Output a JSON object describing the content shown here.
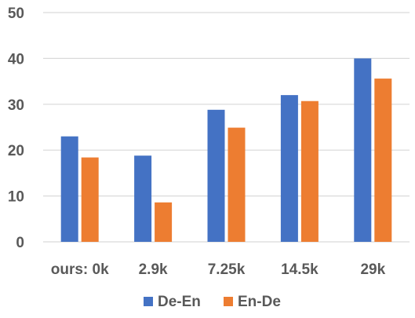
{
  "chart_data": {
    "type": "bar",
    "title": "",
    "xlabel": "",
    "ylabel": "",
    "categories": [
      "ours: 0k",
      "2.9k",
      "7.25k",
      "14.5k",
      "29k"
    ],
    "series": [
      {
        "name": "De-En",
        "color": "#4472C4",
        "values": [
          23.0,
          18.8,
          28.8,
          32.0,
          40.0
        ]
      },
      {
        "name": "En-De",
        "color": "#ED7D31",
        "values": [
          18.4,
          8.6,
          24.9,
          30.7,
          35.6
        ]
      }
    ],
    "ylim": [
      0,
      50
    ],
    "yticks": [
      0,
      10,
      20,
      30,
      40,
      50
    ],
    "grid": true,
    "gridline_color": "#d9d9d9",
    "legend_position": "bottom"
  }
}
